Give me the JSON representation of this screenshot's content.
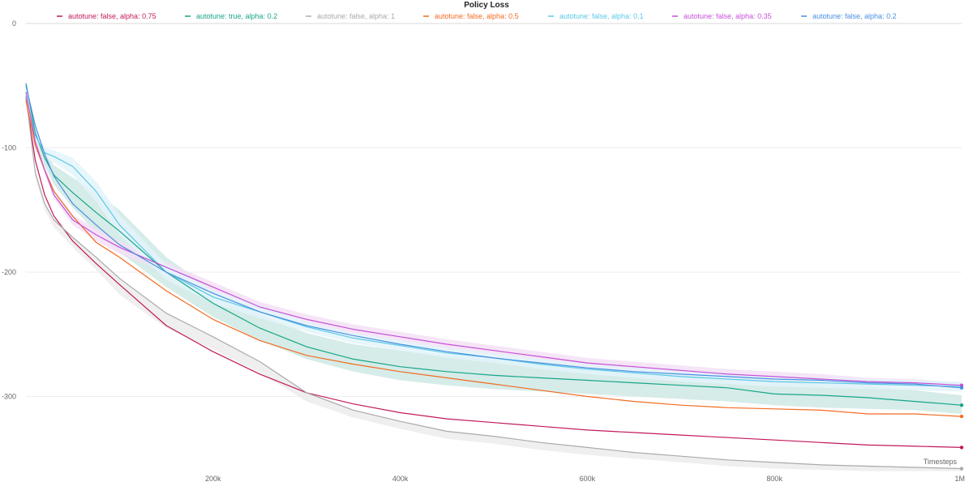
{
  "chart_data": {
    "type": "line",
    "title": "Policy Loss",
    "xlabel": "Timesteps",
    "ylabel": "",
    "xlim": [
      0,
      1000000
    ],
    "ylim": [
      -360,
      0
    ],
    "x_ticks": [
      {
        "value": 200000,
        "label": "200k"
      },
      {
        "value": 400000,
        "label": "400k"
      },
      {
        "value": 600000,
        "label": "600k"
      },
      {
        "value": 800000,
        "label": "800k"
      },
      {
        "value": 1000000,
        "label": "1M"
      }
    ],
    "y_ticks": [
      {
        "value": 0,
        "label": "0"
      },
      {
        "value": -100,
        "label": "-100"
      },
      {
        "value": -200,
        "label": "-200"
      },
      {
        "value": -300,
        "label": "-300"
      }
    ],
    "grid": true,
    "legend_position": "top",
    "x": [
      0,
      10000,
      20000,
      30000,
      50000,
      75000,
      100000,
      150000,
      200000,
      250000,
      300000,
      350000,
      400000,
      450000,
      500000,
      550000,
      600000,
      650000,
      700000,
      750000,
      800000,
      850000,
      900000,
      950000,
      1000000
    ],
    "series": [
      {
        "name": "autotune: false, alpha: 0.75",
        "color": "#c2185b",
        "values": [
          -60,
          -110,
          -138,
          -155,
          -175,
          -193,
          -210,
          -243,
          -264,
          -282,
          -297,
          -306,
          -313,
          -318,
          -321,
          -324,
          -327,
          -329,
          -331,
          -333,
          -335,
          -337,
          -339,
          -340,
          -341
        ]
      },
      {
        "name": "autotune: true, alpha: 0.2",
        "color": "#17a589",
        "values": [
          -48,
          -88,
          -108,
          -122,
          -136,
          -152,
          -167,
          -200,
          -225,
          -245,
          -260,
          -270,
          -276,
          -280,
          -283,
          -285,
          -287,
          -289,
          -291,
          -293,
          -298,
          -299,
          -301,
          -304,
          -307
        ]
      },
      {
        "name": "autotune: false, alpha: 1",
        "color": "#aaaaaa",
        "values": [
          -58,
          -120,
          -145,
          -158,
          -172,
          -188,
          -205,
          -233,
          -252,
          -272,
          -297,
          -311,
          -320,
          -328,
          -332,
          -337,
          -341,
          -345,
          -348,
          -351,
          -353,
          -355,
          -356,
          -357,
          -358
        ]
      },
      {
        "name": "autotune: false, alpha: 0.5",
        "color": "#f26b21",
        "values": [
          -62,
          -98,
          -118,
          -135,
          -155,
          -176,
          -188,
          -215,
          -238,
          -255,
          -267,
          -274,
          -280,
          -285,
          -290,
          -295,
          -300,
          -304,
          -307,
          -309,
          -310,
          -311,
          -314,
          -314,
          -316
        ]
      },
      {
        "name": "autotune: false, alpha: 0.1",
        "color": "#5bc8e6",
        "values": [
          -58,
          -90,
          -104,
          -107,
          -115,
          -135,
          -162,
          -200,
          -220,
          -232,
          -244,
          -253,
          -259,
          -265,
          -269,
          -274,
          -278,
          -281,
          -284,
          -286,
          -288,
          -289,
          -290,
          -291,
          -292
        ]
      },
      {
        "name": "autotune: false, alpha: 0.35",
        "color": "#c550d6",
        "values": [
          -55,
          -95,
          -118,
          -138,
          -158,
          -170,
          -180,
          -196,
          -212,
          -228,
          -238,
          -246,
          -252,
          -258,
          -263,
          -268,
          -273,
          -276,
          -279,
          -282,
          -284,
          -286,
          -288,
          -289,
          -291
        ]
      },
      {
        "name": "autotune: false, alpha: 0.2",
        "color": "#4a8fe0",
        "values": [
          -50,
          -82,
          -105,
          -123,
          -145,
          -162,
          -178,
          -200,
          -217,
          -232,
          -243,
          -251,
          -258,
          -264,
          -269,
          -273,
          -277,
          -280,
          -282,
          -284,
          -286,
          -287,
          -289,
          -290,
          -293
        ]
      }
    ],
    "bands": [
      {
        "series": "autotune: true, alpha: 0.2",
        "color": "#cfe9e4",
        "lower": [
          -48,
          -92,
          -114,
          -130,
          -148,
          -168,
          -184,
          -212,
          -236,
          -255,
          -270,
          -280,
          -287,
          -291,
          -294,
          -296,
          -298,
          -300,
          -302,
          -304,
          -307,
          -309,
          -310,
          -311,
          -314
        ],
        "upper": [
          -48,
          -84,
          -102,
          -114,
          -124,
          -136,
          -150,
          -188,
          -214,
          -234,
          -249,
          -258,
          -263,
          -267,
          -270,
          -272,
          -274,
          -276,
          -278,
          -281,
          -287,
          -289,
          -291,
          -295,
          -299
        ]
      },
      {
        "series": "autotune: false, alpha: 1",
        "color": "#ececec",
        "lower": [
          -58,
          -124,
          -150,
          -164,
          -180,
          -198,
          -218,
          -245,
          -262,
          -281,
          -304,
          -317,
          -326,
          -334,
          -338,
          -343,
          -347,
          -350,
          -353,
          -356,
          -358,
          -359,
          -360,
          -360,
          -360
        ]
      },
      {
        "series": "autotune: false, alpha: 0.35",
        "color": "#f3e1f6",
        "lower": [
          -55,
          -98,
          -121,
          -141,
          -162,
          -175,
          -185,
          -200,
          -216,
          -232,
          -242,
          -250,
          -256,
          -262,
          -267,
          -272,
          -277,
          -280,
          -283,
          -286,
          -288,
          -290,
          -291,
          -292,
          -293
        ],
        "upper": [
          -55,
          -92,
          -114,
          -134,
          -154,
          -165,
          -175,
          -192,
          -208,
          -224,
          -234,
          -242,
          -248,
          -254,
          -259,
          -264,
          -269,
          -272,
          -275,
          -278,
          -280,
          -282,
          -285,
          -286,
          -289
        ]
      },
      {
        "series": "autotune: false, alpha: 0.1",
        "color": "#e3f5fa",
        "lower": [
          -58,
          -93,
          -108,
          -112,
          -122,
          -143,
          -170,
          -206,
          -225,
          -237,
          -248,
          -257,
          -263,
          -269,
          -273,
          -278,
          -282,
          -285,
          -288,
          -290,
          -292,
          -293,
          -294,
          -295,
          -296
        ],
        "upper": [
          -58,
          -86,
          -100,
          -102,
          -108,
          -127,
          -154,
          -194,
          -215,
          -227,
          -240,
          -249,
          -255,
          -261,
          -265,
          -270,
          -274,
          -277,
          -280,
          -282,
          -284,
          -285,
          -286,
          -287,
          -288
        ]
      }
    ]
  }
}
